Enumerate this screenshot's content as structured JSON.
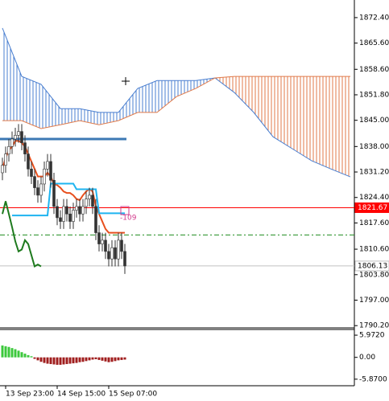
{
  "chart_data": [
    {
      "type": "candlestick",
      "open": [
        1831,
        1833,
        1836,
        1838,
        1840,
        1841,
        1842,
        1839,
        1836,
        1832,
        1830,
        1827,
        1825,
        1828,
        1832,
        1834,
        1829,
        1822,
        1819,
        1818,
        1822,
        1820,
        1818,
        1821,
        1822,
        1820,
        1822,
        1824,
        1825,
        1822,
        1815,
        1812,
        1813,
        1810,
        1808,
        1811,
        1808,
        1813,
        1810
      ],
      "high": [
        1835,
        1838,
        1840,
        1842,
        1843,
        1844,
        1844,
        1841,
        1838,
        1834,
        1832,
        1829,
        1830,
        1834,
        1836,
        1836,
        1831,
        1824,
        1821,
        1824,
        1824,
        1822,
        1823,
        1824,
        1824,
        1824,
        1826,
        1827,
        1827,
        1824,
        1817,
        1815,
        1815,
        1812,
        1813,
        1813,
        1815,
        1815,
        1812
      ],
      "low": [
        1829,
        1831,
        1834,
        1836,
        1838,
        1839,
        1837,
        1834,
        1830,
        1828,
        1825,
        1823,
        1823,
        1826,
        1830,
        1827,
        1820,
        1817,
        1816,
        1816,
        1818,
        1816,
        1816,
        1819,
        1818,
        1818,
        1820,
        1822,
        1820,
        1813,
        1810,
        1810,
        1808,
        1806,
        1806,
        1806,
        1806,
        1808,
        1804
      ],
      "close": [
        1833,
        1836,
        1838,
        1840,
        1841,
        1842,
        1839,
        1836,
        1832,
        1830,
        1827,
        1825,
        1828,
        1832,
        1834,
        1829,
        1822,
        1819,
        1818,
        1822,
        1820,
        1818,
        1821,
        1822,
        1820,
        1822,
        1824,
        1825,
        1822,
        1815,
        1812,
        1813,
        1810,
        1808,
        1811,
        1808,
        1813,
        1810,
        1806.13
      ],
      "color": "#333333",
      "series": [
        {
          "color": "#e8501e",
          "values": [
            1832,
            1835,
            1837,
            1838,
            1839.5,
            1839.5,
            1839,
            1838,
            1836,
            1834,
            1832,
            1830,
            1830,
            1830,
            1831,
            1830,
            1828,
            1827.7,
            1827,
            1826,
            1825.6,
            1825.6,
            1825,
            1824,
            1823.7,
            1825,
            1826,
            1826.7,
            1826,
            1822,
            1820,
            1818,
            1816,
            1815,
            1815,
            1815,
            1815,
            1815,
            1815
          ]
        },
        {
          "color": "#1eb4f0",
          "values": [
            null,
            null,
            null,
            1819.6,
            1819.6,
            1819.6,
            1819.6,
            1819.6,
            1819.6,
            1819.6,
            1819.6,
            1819.6,
            1819.6,
            1819.6,
            1819.6,
            1828.1,
            1828.1,
            1828.1,
            1828.1,
            1828.1,
            1828.1,
            1828.1,
            1828.1,
            1826.6,
            1826.6,
            1826.6,
            1826.6,
            1826.6,
            1826.6,
            1826.6,
            1820.2,
            1820.2,
            1820.2,
            1820.2,
            1820.2,
            1820.2,
            1820.2,
            1820.2,
            1820.2
          ]
        },
        {
          "color": "#1e7a1e",
          "values": [
            1820,
            1823.4,
            1820,
            1816.5,
            1812.7,
            1810,
            1810.5,
            1813,
            1812,
            1809,
            1806,
            1806.5,
            1806,
            null,
            null,
            null,
            null,
            null,
            null,
            null,
            null,
            null,
            null,
            null,
            null,
            null,
            null,
            null,
            null,
            null,
            null,
            null,
            null,
            null,
            null,
            null,
            null,
            null,
            null
          ]
        }
      ],
      "cloud": {
        "x": [
          0,
          6,
          12,
          18,
          24,
          30,
          36,
          42,
          48,
          54,
          60,
          66,
          72,
          78,
          84,
          90,
          96,
          102,
          108
        ],
        "span_a": [
          1869.6,
          1856.7,
          1854.6,
          1848.1,
          1848.1,
          1847.1,
          1847.1,
          1853.5,
          1855.6,
          1855.6,
          1855.6,
          1856.3,
          1852.4,
          1847.1,
          1840.6,
          1837.4,
          1834.2,
          1832.0,
          1829.9
        ],
        "span_b": [
          1844.9,
          1844.9,
          1842.8,
          1843.8,
          1844.9,
          1843.8,
          1844.9,
          1847.1,
          1847.1,
          1851.3,
          1853.5,
          1856.3,
          1856.7,
          1856.7,
          1856.7,
          1856.7,
          1856.7,
          1856.7,
          1856.7
        ],
        "up_color": "#4a7fd0",
        "down_color": "#e07a4a"
      },
      "levels": [
        {
          "value": 1840.0,
          "color": "#3c78b4",
          "span": "candles"
        },
        {
          "value": 1814.4,
          "color": "#1e8c1e",
          "span": "full",
          "style": "dashdot"
        }
      ],
      "price_lines": [
        {
          "value": 1821.67,
          "color": "#ff0000",
          "box_color": "#ff0000",
          "text_color": "#ffffff"
        },
        {
          "value": 1806.13,
          "color": "#c0c0c0",
          "box_color": "#ffffff",
          "text_color": "#000000"
        }
      ],
      "annotations": [
        {
          "text": "-109",
          "x": 38,
          "y": 1820.9,
          "color": "#d23c8c"
        }
      ],
      "ylim": [
        1789.6,
        1877.1
      ],
      "yticks": [
        {
          "value": 1872.4,
          "label": "1872.40"
        },
        {
          "value": 1865.6,
          "label": "1865.60"
        },
        {
          "value": 1858.6,
          "label": "1858.60"
        },
        {
          "value": 1851.8,
          "label": "1851.80"
        },
        {
          "value": 1845.0,
          "label": "1845.00"
        },
        {
          "value": 1838.0,
          "label": "1838.00"
        },
        {
          "value": 1831.2,
          "label": "1831.20"
        },
        {
          "value": 1824.4,
          "label": "1824.40"
        },
        {
          "value": 1817.6,
          "label": "1817.60"
        },
        {
          "value": 1810.6,
          "label": "1810.60"
        },
        {
          "value": 1803.8,
          "label": "1803.80"
        },
        {
          "value": 1797.0,
          "label": "1797.00"
        },
        {
          "value": 1790.2,
          "label": "1790.20"
        }
      ],
      "xticks": [
        {
          "value": 1,
          "label": "13 Sep 23:00"
        },
        {
          "value": 17,
          "label": "14 Sep 15:00"
        },
        {
          "value": 33,
          "label": "15 Sep 07:00"
        }
      ]
    },
    {
      "type": "bar",
      "values": [
        3.2,
        3.0,
        2.8,
        2.5,
        2.2,
        1.8,
        1.4,
        1.0,
        0.6,
        0.3,
        -0.4,
        -0.8,
        -1.2,
        -1.5,
        -1.7,
        -1.8,
        -1.9,
        -2.0,
        -2.0,
        -1.9,
        -1.8,
        -1.7,
        -1.6,
        -1.5,
        -1.3,
        -1.2,
        -1.0,
        -0.8,
        -0.6,
        -0.5,
        -0.7,
        -0.9,
        -1.1,
        -1.3,
        -1.2,
        -1.0,
        -0.8,
        -0.7,
        -0.6
      ],
      "up_color": "#3cc83c",
      "down_color": "#a01e1e",
      "ylim": [
        -7.2,
        7.5
      ],
      "yticks": [
        {
          "value": 5.972,
          "label": "5.9720"
        },
        {
          "value": 0,
          "label": "0.00"
        },
        {
          "value": -5.87,
          "label": "-5.8700"
        }
      ]
    }
  ]
}
